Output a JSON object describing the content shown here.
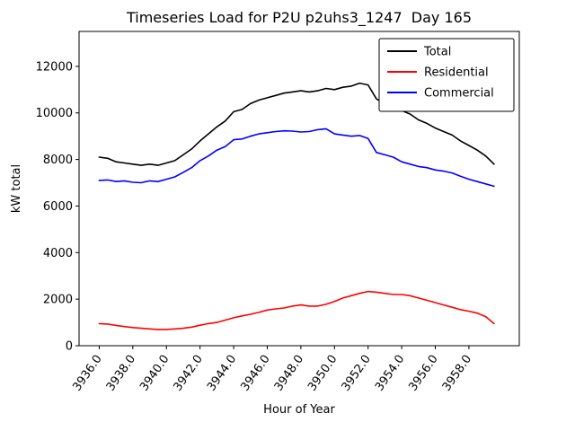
{
  "figure": {
    "background": "#ffffff"
  },
  "chart_data": {
    "type": "line",
    "title": "Timeseries Load for P2U p2uhs3_1247  Day 165",
    "xlabel": "Hour of Year",
    "ylabel": "kW total",
    "xlim": [
      3934.8,
      3961.0
    ],
    "ylim": [
      0,
      13500
    ],
    "grid": false,
    "legend_position": "upper right",
    "xticks": [
      3936,
      3938,
      3940,
      3942,
      3944,
      3946,
      3948,
      3950,
      3952,
      3954,
      3956,
      3958
    ],
    "xtick_labels": [
      "3936.0",
      "3938.0",
      "3940.0",
      "3942.0",
      "3944.0",
      "3946.0",
      "3948.0",
      "3950.0",
      "3952.0",
      "3954.0",
      "3956.0",
      "3958.0"
    ],
    "yticks": [
      0,
      2000,
      4000,
      6000,
      8000,
      10000,
      12000
    ],
    "ytick_labels": [
      "0",
      "2000",
      "4000",
      "6000",
      "8000",
      "10000",
      "12000"
    ],
    "x": [
      3936.0,
      3936.5,
      3937.0,
      3937.5,
      3938.0,
      3938.5,
      3939.0,
      3939.5,
      3940.0,
      3940.5,
      3941.0,
      3941.5,
      3942.0,
      3942.5,
      3943.0,
      3943.5,
      3944.0,
      3944.5,
      3945.0,
      3945.5,
      3946.0,
      3946.5,
      3947.0,
      3947.5,
      3948.0,
      3948.5,
      3949.0,
      3949.5,
      3950.0,
      3950.5,
      3951.0,
      3951.5,
      3952.0,
      3952.5,
      3953.0,
      3953.5,
      3954.0,
      3954.5,
      3955.0,
      3955.5,
      3956.0,
      3956.5,
      3957.0,
      3957.5,
      3958.0,
      3958.5,
      3959.0,
      3959.5
    ],
    "series": [
      {
        "name": "Total",
        "color": "#000000",
        "values": [
          8100,
          8050,
          7900,
          7850,
          7800,
          7750,
          7800,
          7750,
          7850,
          7950,
          8200,
          8450,
          8800,
          9100,
          9400,
          9650,
          10050,
          10150,
          10400,
          10550,
          10650,
          10750,
          10850,
          10900,
          10950,
          10900,
          10950,
          11050,
          11000,
          11100,
          11150,
          11280,
          11200,
          10600,
          10400,
          10350,
          10100,
          9950,
          9700,
          9550,
          9350,
          9200,
          9050,
          8800,
          8600,
          8400,
          8150,
          7800
        ]
      },
      {
        "name": "Residential",
        "color": "#ff0000",
        "values": [
          950,
          930,
          870,
          820,
          780,
          750,
          720,
          700,
          700,
          720,
          750,
          800,
          880,
          950,
          1000,
          1100,
          1200,
          1280,
          1350,
          1430,
          1530,
          1580,
          1620,
          1700,
          1750,
          1700,
          1700,
          1780,
          1900,
          2050,
          2150,
          2250,
          2330,
          2300,
          2250,
          2200,
          2200,
          2150,
          2050,
          1950,
          1850,
          1750,
          1650,
          1550,
          1480,
          1400,
          1250,
          950
        ]
      },
      {
        "name": "Commercial",
        "color": "#0000ff",
        "values": [
          7100,
          7120,
          7050,
          7080,
          7020,
          7000,
          7080,
          7050,
          7150,
          7250,
          7450,
          7650,
          7950,
          8150,
          8400,
          8550,
          8850,
          8880,
          9000,
          9100,
          9150,
          9200,
          9230,
          9220,
          9180,
          9200,
          9280,
          9320,
          9100,
          9050,
          9000,
          9030,
          8900,
          8300,
          8200,
          8100,
          7900,
          7800,
          7700,
          7650,
          7550,
          7500,
          7420,
          7280,
          7150,
          7050,
          6950,
          6850
        ]
      }
    ]
  }
}
